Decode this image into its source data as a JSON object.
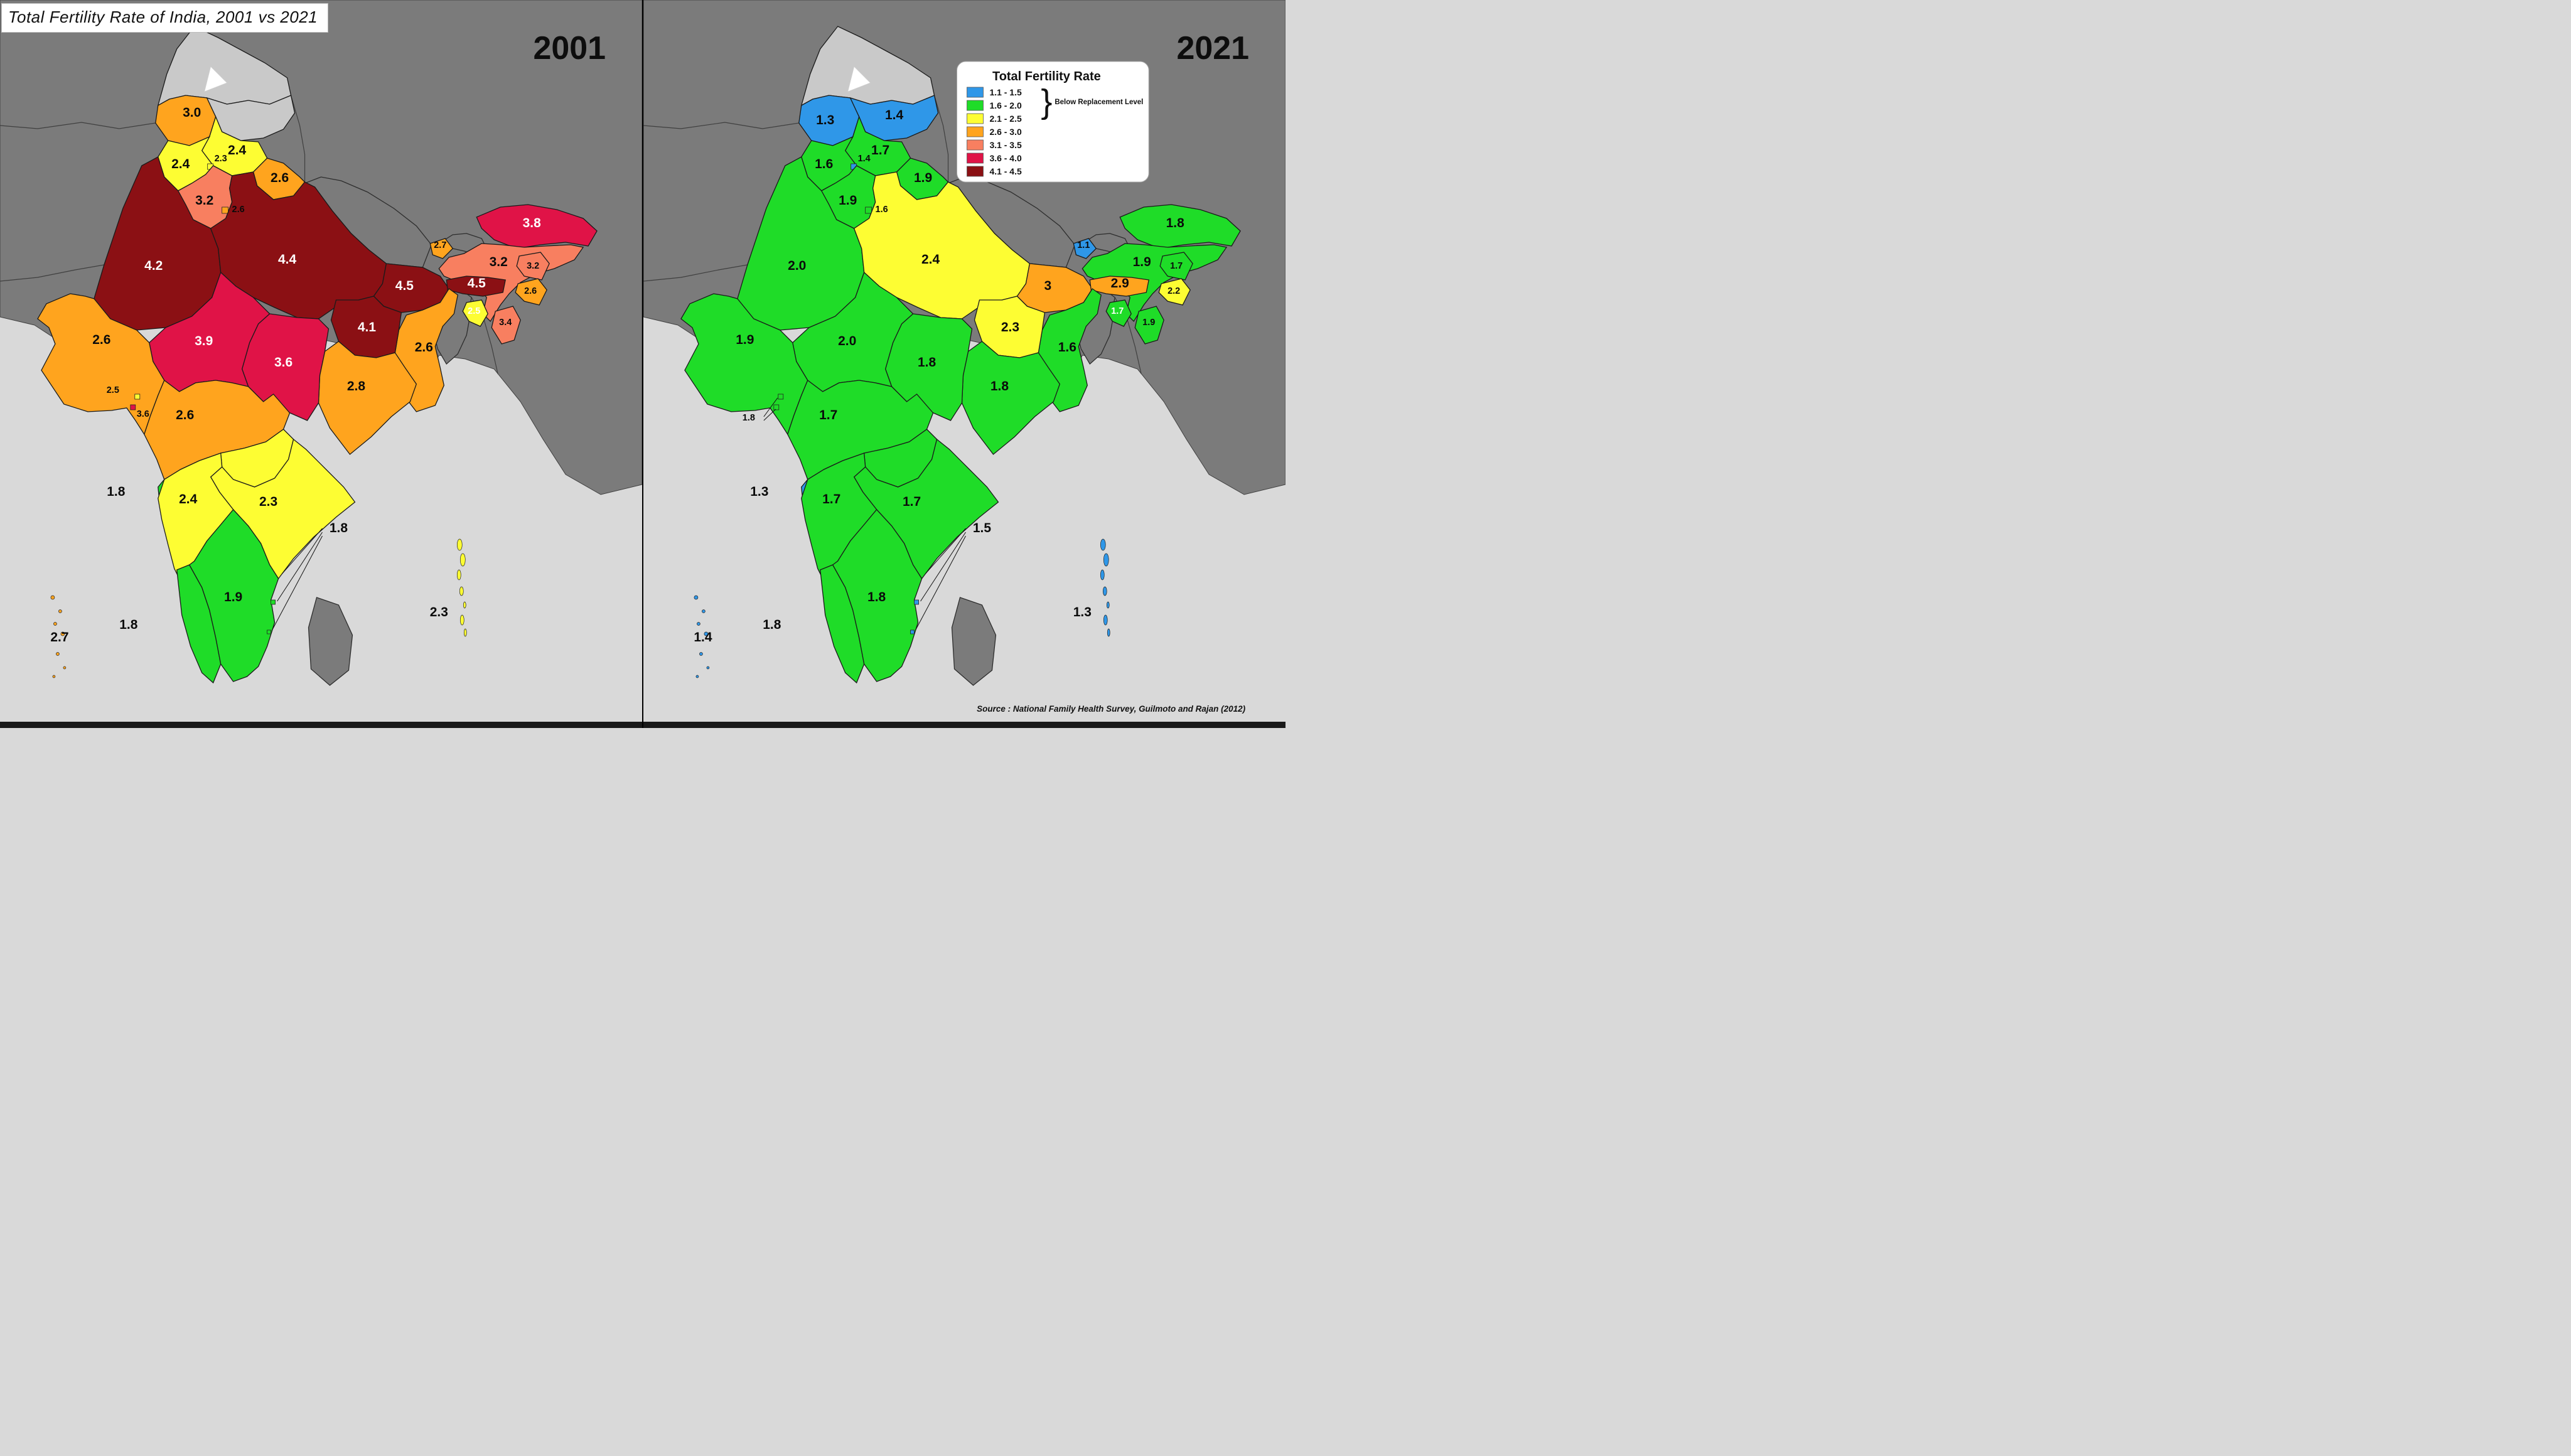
{
  "title": "Total Fertility Rate of India, 2001 vs 2021",
  "source": "Source : National Family Health Survey, Guilmoto and Rajan (2012)",
  "panels": [
    {
      "year_label": "2001"
    },
    {
      "year_label": "2021"
    }
  ],
  "legend": {
    "title": "Total Fertility Rate",
    "brace_note": "Below Replacement Level",
    "bands": [
      {
        "range": "1.1 - 1.5",
        "color": "#2f97e8",
        "max": 1.5
      },
      {
        "range": "1.6 - 2.0",
        "color": "#1fdc28",
        "max": 2.0
      },
      {
        "range": "2.1 - 2.5",
        "color": "#fdfd33",
        "max": 2.5
      },
      {
        "range": "2.6 - 3.0",
        "color": "#ffa41e",
        "max": 3.0
      },
      {
        "range": "3.1 - 3.5",
        "color": "#f87f60",
        "max": 3.5
      },
      {
        "range": "3.6 - 4.0",
        "color": "#e01347",
        "max": 4.0
      },
      {
        "range": "4.1 - 4.5",
        "color": "#8b1014",
        "max": 4.5
      }
    ],
    "no_data_color": "#c9c9c9"
  },
  "map_colors": {
    "sea": "#d9d9d9",
    "neighbor_land": "#7b7b7b",
    "state_border": "#1a1a1a",
    "neighbor_border": "#3f3f3f",
    "label_black": "#0a0a0a",
    "label_white": "#ffffff"
  },
  "states": [
    {
      "id": "jammu-kashmir",
      "name": "Jammu & Kashmir",
      "tfr": {
        "2001": "3.0",
        "2021": "1.3"
      }
    },
    {
      "id": "ladakh",
      "name": "Ladakh",
      "tfr": {
        "2001": null,
        "2021": "1.4"
      }
    },
    {
      "id": "himachal-pradesh",
      "name": "Himachal Pradesh",
      "tfr": {
        "2001": "2.4",
        "2021": "1.7"
      }
    },
    {
      "id": "punjab",
      "name": "Punjab",
      "tfr": {
        "2001": "2.4",
        "2021": "1.6"
      }
    },
    {
      "id": "chandigarh",
      "name": "Chandigarh",
      "tfr": {
        "2001": "2.3",
        "2021": "1.4"
      }
    },
    {
      "id": "uttarakhand",
      "name": "Uttarakhand",
      "tfr": {
        "2001": "2.6",
        "2021": "1.9"
      }
    },
    {
      "id": "haryana",
      "name": "Haryana",
      "tfr": {
        "2001": "3.2",
        "2021": "1.9"
      }
    },
    {
      "id": "delhi",
      "name": "Delhi",
      "tfr": {
        "2001": "2.6",
        "2021": "1.6"
      }
    },
    {
      "id": "rajasthan",
      "name": "Rajasthan",
      "tfr": {
        "2001": "4.2",
        "2021": "2.0"
      }
    },
    {
      "id": "uttar-pradesh",
      "name": "Uttar Pradesh",
      "tfr": {
        "2001": "4.4",
        "2021": "2.4"
      }
    },
    {
      "id": "bihar",
      "name": "Bihar",
      "tfr": {
        "2001": "4.5",
        "2021": "3"
      }
    },
    {
      "id": "sikkim",
      "name": "Sikkim",
      "tfr": {
        "2001": "2.7",
        "2021": "1.1"
      }
    },
    {
      "id": "arunachal-pradesh",
      "name": "Arunachal Pradesh",
      "tfr": {
        "2001": "3.8",
        "2021": "1.8"
      }
    },
    {
      "id": "assam",
      "name": "Assam",
      "tfr": {
        "2001": "3.2",
        "2021": "1.9"
      }
    },
    {
      "id": "nagaland",
      "name": "Nagaland",
      "tfr": {
        "2001": "3.2",
        "2021": "1.7"
      }
    },
    {
      "id": "meghalaya",
      "name": "Meghalaya",
      "tfr": {
        "2001": "4.5",
        "2021": "2.9"
      }
    },
    {
      "id": "manipur",
      "name": "Manipur",
      "tfr": {
        "2001": "2.6",
        "2021": "2.2"
      }
    },
    {
      "id": "tripura",
      "name": "Tripura",
      "tfr": {
        "2001": "2.5",
        "2021": "1.7"
      }
    },
    {
      "id": "mizoram",
      "name": "Mizoram",
      "tfr": {
        "2001": "3.4",
        "2021": "1.9"
      }
    },
    {
      "id": "west-bengal",
      "name": "West Bengal",
      "tfr": {
        "2001": "2.6",
        "2021": "1.6"
      }
    },
    {
      "id": "jharkhand",
      "name": "Jharkhand",
      "tfr": {
        "2001": "4.1",
        "2021": "2.3"
      }
    },
    {
      "id": "odisha",
      "name": "Odisha",
      "tfr": {
        "2001": "2.8",
        "2021": "1.8"
      }
    },
    {
      "id": "chhattisgarh",
      "name": "Chhattisgarh",
      "tfr": {
        "2001": "3.6",
        "2021": "1.8"
      }
    },
    {
      "id": "madhya-pradesh",
      "name": "Madhya Pradesh",
      "tfr": {
        "2001": "3.9",
        "2021": "2.0"
      }
    },
    {
      "id": "gujarat",
      "name": "Gujarat",
      "tfr": {
        "2001": "2.6",
        "2021": "1.9"
      }
    },
    {
      "id": "daman-diu",
      "name": "Daman & Diu",
      "tfr": {
        "2001": "2.5",
        "2021": "1.8"
      }
    },
    {
      "id": "dadra-nagar-haveli",
      "name": "Dadra & Nagar Haveli",
      "tfr": {
        "2001": "3.6",
        "2021": "1.8"
      }
    },
    {
      "id": "maharashtra",
      "name": "Maharashtra",
      "tfr": {
        "2001": "2.6",
        "2021": "1.7"
      }
    },
    {
      "id": "telangana",
      "name": "Telangana",
      "tfr": {
        "2001": "2.3",
        "2021": "1.8"
      }
    },
    {
      "id": "andhra-pradesh",
      "name": "Andhra Pradesh",
      "tfr": {
        "2001": "2.3",
        "2021": "1.7"
      }
    },
    {
      "id": "goa",
      "name": "Goa",
      "tfr": {
        "2001": "1.8",
        "2021": "1.3"
      }
    },
    {
      "id": "karnataka",
      "name": "Karnataka",
      "tfr": {
        "2001": "2.4",
        "2021": "1.7"
      }
    },
    {
      "id": "kerala",
      "name": "Kerala",
      "tfr": {
        "2001": "1.8",
        "2021": "1.8"
      }
    },
    {
      "id": "tamil-nadu",
      "name": "Tamil Nadu",
      "tfr": {
        "2001": "1.9",
        "2021": "1.8"
      }
    },
    {
      "id": "puducherry",
      "name": "Puducherry",
      "tfr": {
        "2001": "1.8",
        "2021": "1.5"
      }
    },
    {
      "id": "lakshadweep",
      "name": "Lakshadweep",
      "tfr": {
        "2001": "2.7",
        "2021": "1.4"
      }
    },
    {
      "id": "andaman-nicobar",
      "name": "Andaman & Nicobar",
      "tfr": {
        "2001": "2.3",
        "2021": "1.3"
      }
    }
  ]
}
